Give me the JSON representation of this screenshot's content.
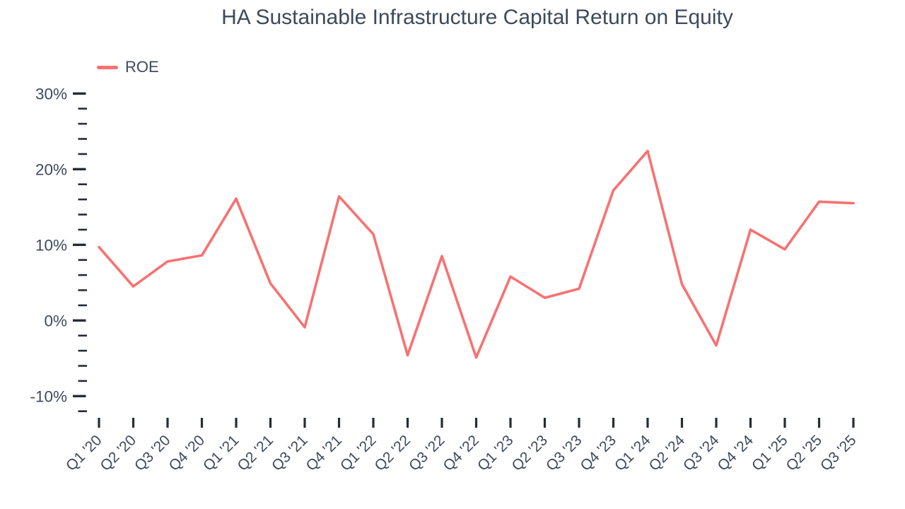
{
  "title": "HA Sustainable Infrastructure Capital Return on Equity",
  "legend": {
    "position": "top-left",
    "items": [
      {
        "label": "ROE",
        "color": "#f87171"
      }
    ]
  },
  "chart_data": {
    "type": "line",
    "title": "HA Sustainable Infrastructure Capital Return on Equity",
    "xlabel": "",
    "ylabel": "",
    "categories": [
      "Q1 '20",
      "Q2 '20",
      "Q3 '20",
      "Q4 '20",
      "Q1 '21",
      "Q2 '21",
      "Q3 '21",
      "Q4 '21",
      "Q1 '22",
      "Q2 '22",
      "Q3 '22",
      "Q4 '22",
      "Q1 '23",
      "Q2 '23",
      "Q3 '23",
      "Q4 '23",
      "Q1 '24",
      "Q2 '24",
      "Q3 '24",
      "Q4 '24",
      "Q1 '25",
      "Q2 '25",
      "Q3 '25"
    ],
    "series": [
      {
        "name": "ROE",
        "color": "#f87171",
        "values": [
          9.7,
          4.5,
          7.8,
          8.6,
          16.1,
          4.9,
          -0.9,
          16.4,
          11.4,
          -4.6,
          8.5,
          -4.9,
          5.8,
          3.0,
          4.2,
          17.2,
          22.4,
          4.8,
          -3.3,
          12.0,
          9.4,
          15.7,
          15.5
        ]
      }
    ],
    "y_axis": {
      "min": -12,
      "max": 30,
      "major_tick_step": 10,
      "minor_tick_step": 2,
      "major_tick_labels": [
        "30%",
        "20%",
        "10%",
        "0%",
        "-10%"
      ],
      "unit": "%"
    },
    "grid": false,
    "legend_position": "top-left"
  },
  "colors": {
    "line": "#f87171",
    "text": "#3d4a5c",
    "tick": "#262c36",
    "background": "#ffffff"
  }
}
